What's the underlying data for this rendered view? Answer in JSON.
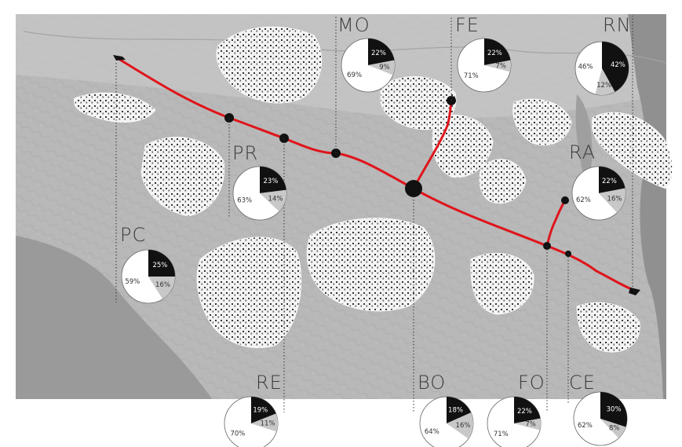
{
  "map": {
    "colors": {
      "terrain": "#b9b9b9",
      "sea": "#8e8e8e",
      "route": "#e0141b",
      "urban": "#ffffff",
      "share_dark": "#111111",
      "share_light": "#ffffff",
      "share_grey": "#c8c8c8"
    },
    "cities": [
      {
        "code": "PC",
        "shares": {
          "dark": 25,
          "light": 59,
          "grey": 16
        }
      },
      {
        "code": "PR",
        "shares": {
          "dark": 23,
          "light": 63,
          "grey": 14
        }
      },
      {
        "code": "RE",
        "shares": {
          "dark": 19,
          "light": 70,
          "grey": 11
        }
      },
      {
        "code": "MO",
        "shares": {
          "dark": 22,
          "light": 69,
          "grey": 9
        }
      },
      {
        "code": "FE",
        "shares": {
          "dark": 22,
          "light": 71,
          "grey": 7
        }
      },
      {
        "code": "BO",
        "shares": {
          "dark": 18,
          "light": 64,
          "grey": 16
        }
      },
      {
        "code": "RA",
        "shares": {
          "dark": 22,
          "light": 62,
          "grey": 16
        }
      },
      {
        "code": "RN",
        "shares": {
          "dark": 42,
          "light": 46,
          "grey": 12
        }
      },
      {
        "code": "FO",
        "shares": {
          "dark": 22,
          "light": 71,
          "grey": 7
        }
      },
      {
        "code": "CE",
        "shares": {
          "dark": 30,
          "light": 62,
          "grey": 8
        }
      }
    ]
  }
}
